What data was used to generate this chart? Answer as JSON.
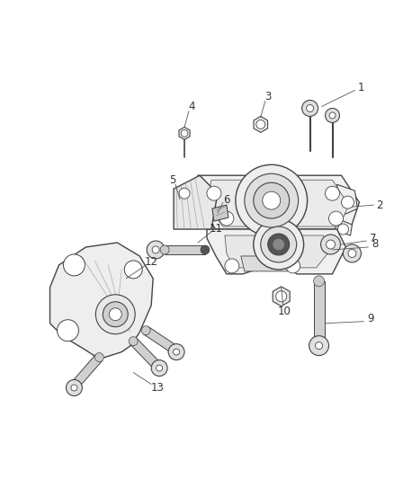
{
  "background_color": "#ffffff",
  "line_color": "#444444",
  "label_color": "#333333",
  "fig_width": 4.38,
  "fig_height": 5.33,
  "dpi": 100
}
